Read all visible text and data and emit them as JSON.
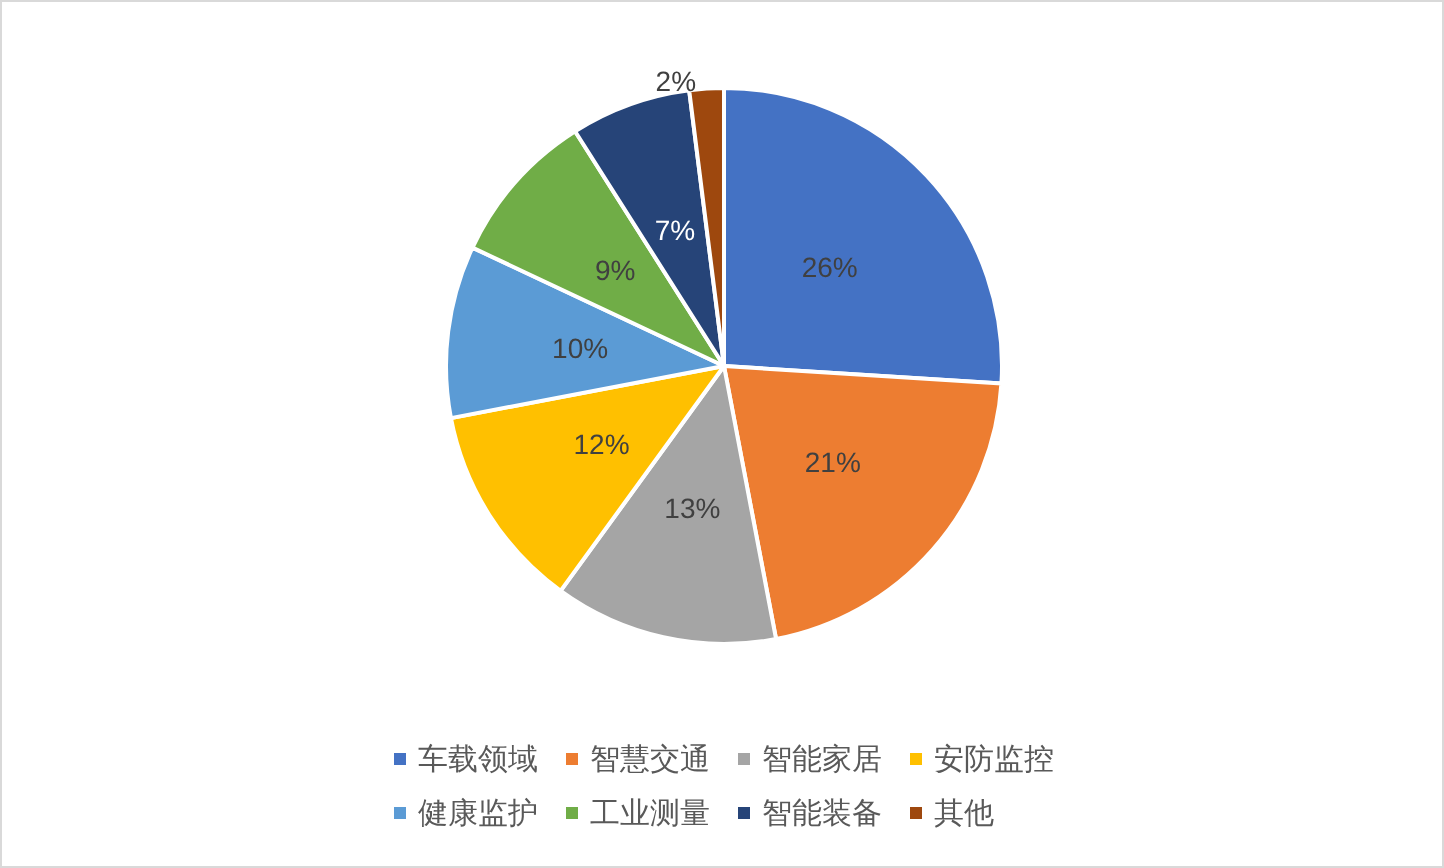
{
  "chart_data": {
    "type": "pie",
    "categories": [
      "车载领域",
      "智慧交通",
      "智能家居",
      "安防监控",
      "健康监护",
      "工业测量",
      "智能装备",
      "其他"
    ],
    "values": [
      26,
      21,
      13,
      12,
      10,
      9,
      7,
      2
    ],
    "colors": [
      "#4472c4",
      "#ed7d31",
      "#a5a5a5",
      "#ffc000",
      "#5b9bd5",
      "#70ad47",
      "#264478",
      "#9e480e"
    ],
    "value_labels": [
      "26%",
      "21%",
      "13%",
      "12%",
      "10%",
      "9%",
      "7%",
      "2%"
    ],
    "legend": "bottom"
  }
}
